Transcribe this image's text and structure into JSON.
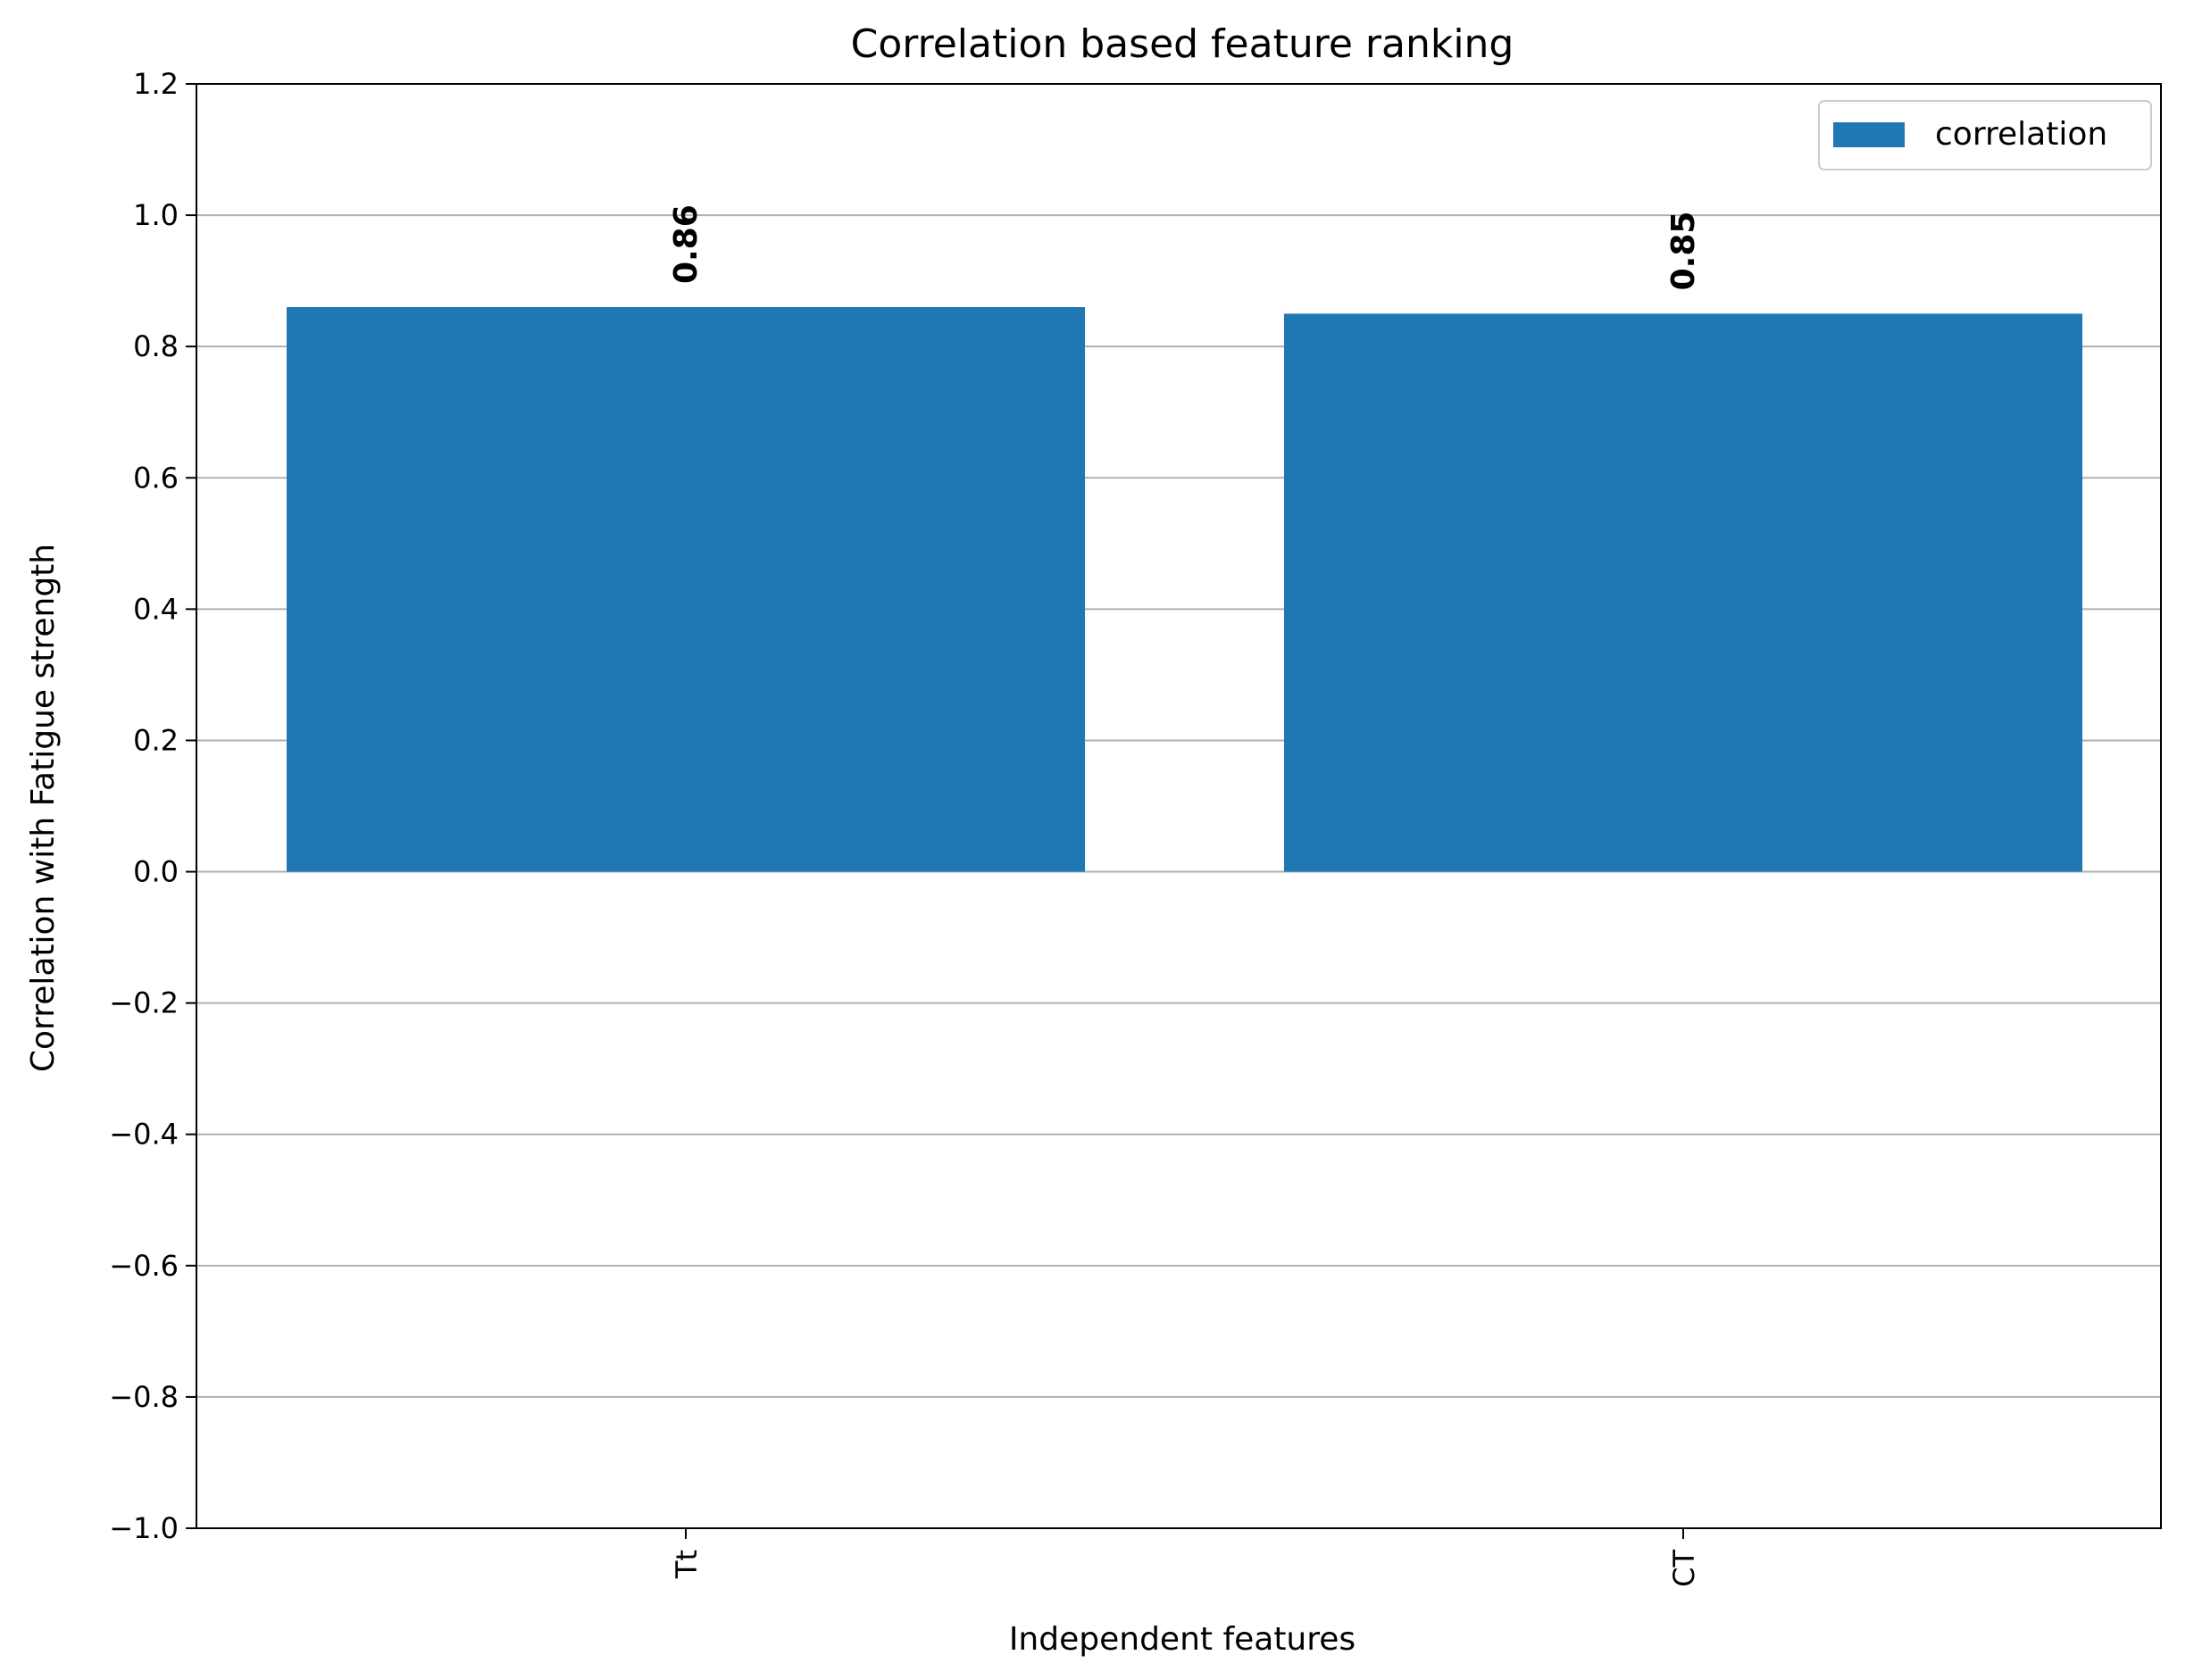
{
  "chart_data": {
    "type": "bar",
    "title": "Correlation based feature ranking",
    "xlabel": "Independent features",
    "ylabel": "Correlation with Fatigue strength",
    "categories": [
      "Tt",
      "CT"
    ],
    "series": [
      {
        "name": "correlation",
        "values": [
          0.86,
          0.85
        ],
        "color": "#1f77b4"
      }
    ],
    "data_labels": [
      "0.86",
      "0.85"
    ],
    "ylim": [
      -1.0,
      1.2
    ],
    "yticks": [
      -1.0,
      -0.8,
      -0.6,
      -0.4,
      -0.2,
      0.0,
      0.2,
      0.4,
      0.6,
      0.8,
      1.0,
      1.2
    ],
    "ytick_labels": [
      "−1.0",
      "−0.8",
      "−0.6",
      "−0.4",
      "−0.2",
      "0.0",
      "0.2",
      "0.4",
      "0.6",
      "0.8",
      "1.0",
      "1.2"
    ],
    "grid": "y",
    "legend_position": "top-right",
    "xtick_rotation": "vertical"
  }
}
